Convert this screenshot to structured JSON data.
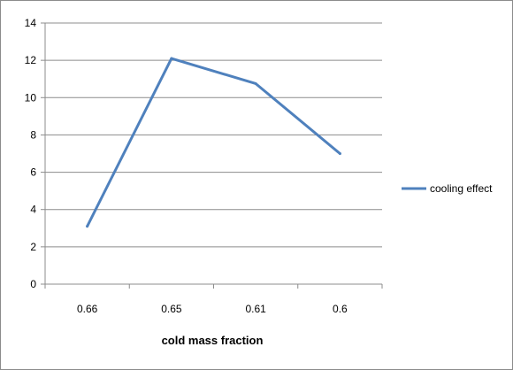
{
  "chart_data": {
    "type": "line",
    "categories": [
      "0.66",
      "0.65",
      "0.61",
      "0.6"
    ],
    "series": [
      {
        "name": "cooling effect",
        "values": [
          3.1,
          12.1,
          10.75,
          7.0
        ],
        "color": "#4f81bd"
      }
    ],
    "xlabel": "cold mass fraction",
    "ylabel": "",
    "ylim": [
      0,
      14
    ],
    "yticks": [
      "0",
      "2",
      "4",
      "6",
      "8",
      "10",
      "12",
      "14"
    ],
    "grid": true,
    "legend_position": "right"
  }
}
